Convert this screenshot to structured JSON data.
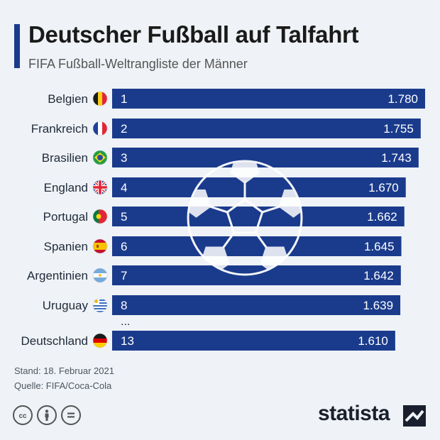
{
  "header": {
    "title": "Deutscher Fußball auf Talfahrt",
    "subtitle": "FIFA Fußball-Weltrangliste der Männer"
  },
  "chart_data": {
    "type": "bar",
    "orientation": "horizontal",
    "categories": [
      "Belgien",
      "Frankreich",
      "Brasilien",
      "England",
      "Portugal",
      "Spanien",
      "Argentinien",
      "Uruguay",
      "Deutschland"
    ],
    "ranks": [
      "1",
      "2",
      "3",
      "4",
      "5",
      "6",
      "7",
      "8",
      "13"
    ],
    "values": [
      1780,
      1755,
      1743,
      1670,
      1662,
      1645,
      1642,
      1639,
      1610
    ],
    "value_labels": [
      "1.780",
      "1.755",
      "1.743",
      "1.670",
      "1.662",
      "1.645",
      "1.642",
      "1.639",
      "1.610"
    ],
    "gap_label": "...",
    "bar_color": "#1a3b8c",
    "flags": [
      "belgium-flag",
      "france-flag",
      "brazil-flag",
      "england-flag",
      "portugal-flag",
      "spain-flag",
      "argentina-flag",
      "uruguay-flag",
      "germany-flag"
    ]
  },
  "footer": {
    "date": "Stand: 18. Februar 2021",
    "source": "Quelle: FIFA/Coca-Cola",
    "brand": "statista"
  }
}
